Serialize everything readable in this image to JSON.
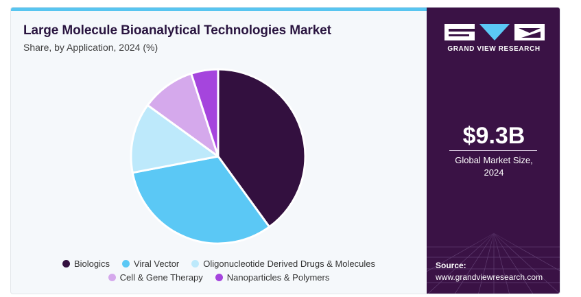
{
  "header": {
    "title": "Large Molecule Bioanalytical Technologies Market",
    "subtitle": "Share, by Application, 2024 (%)"
  },
  "chart_data": {
    "type": "pie",
    "title": "Large Molecule Bioanalytical Technologies Market",
    "subtitle": "Share, by Application, 2024 (%)",
    "categories": [
      "Biologics",
      "Viral Vector",
      "Oligonucleotide Derived Drugs & Molecules",
      "Cell & Gene Therapy",
      "Nanoparticles & Polymers"
    ],
    "values": [
      40,
      32,
      13,
      10,
      5
    ],
    "colors": [
      "#33103f",
      "#5bc8f5",
      "#bde9fb",
      "#d5a9ec",
      "#a545dd"
    ],
    "legend_position": "bottom"
  },
  "legend": {
    "row1": [
      "Biologics",
      "Viral Vector",
      "Oligonucleotide Derived Drugs & Molecules"
    ],
    "row2": [
      "Cell & Gene Therapy",
      "Nanoparticles & Polymers"
    ]
  },
  "sidebar": {
    "brand": "GRAND VIEW RESEARCH",
    "value": "$9.3B",
    "value_label_line1": "Global Market Size,",
    "value_label_line2": "2024",
    "source_label": "Source:",
    "source_url": "www.grandviewresearch.com",
    "background": "#3a1245"
  }
}
